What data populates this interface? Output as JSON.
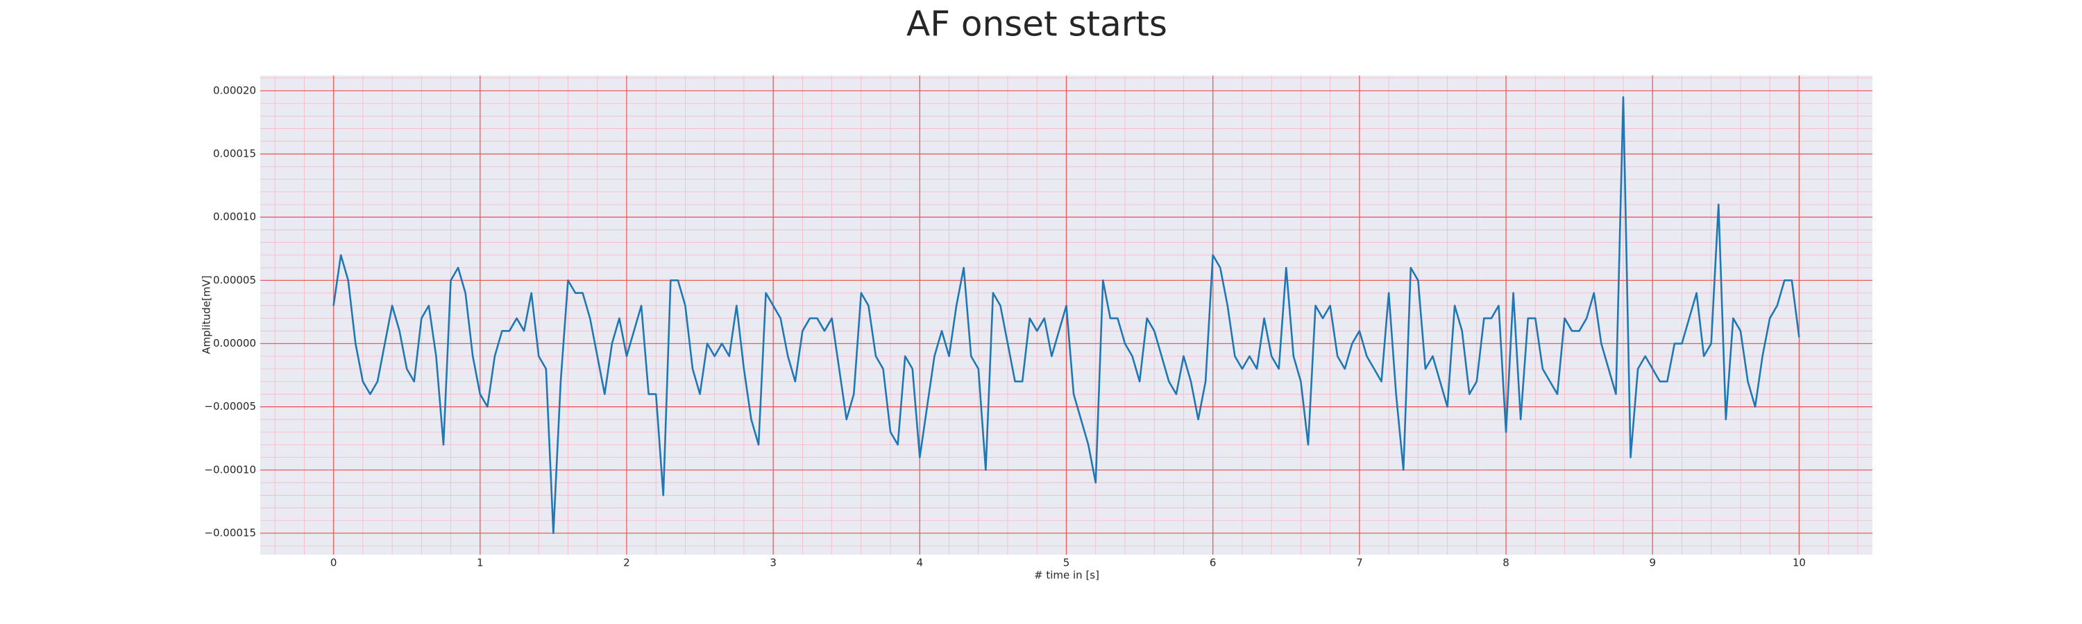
{
  "chart_data": {
    "type": "line",
    "title": "AF onset starts",
    "xlabel": "# time in [s]",
    "ylabel": "Amplitude[mV]",
    "color": "#1f77b4",
    "grid": true,
    "minor_grid": true,
    "xlim": [
      -0.5,
      10.5
    ],
    "xticks": [
      0,
      1,
      2,
      3,
      4,
      5,
      6,
      7,
      8,
      9,
      10
    ],
    "ylim": [
      -0.000167,
      0.000212
    ],
    "yticks": [
      {
        "value": -0.00015,
        "label": "−0.00015"
      },
      {
        "value": -0.0001,
        "label": "−0.00010"
      },
      {
        "value": -5e-05,
        "label": "−0.00005"
      },
      {
        "value": 0,
        "label": "0.00000"
      },
      {
        "value": 5e-05,
        "label": "0.00005"
      },
      {
        "value": 0.0001,
        "label": "0.00010"
      },
      {
        "value": 0.00015,
        "label": "0.00015"
      },
      {
        "value": 0.0002,
        "label": "0.00020"
      }
    ],
    "x": [
      0,
      0.05,
      0.1,
      0.15,
      0.2,
      0.25,
      0.3,
      0.35,
      0.4,
      0.45,
      0.5,
      0.55,
      0.6,
      0.65,
      0.7,
      0.75,
      0.8,
      0.85,
      0.9,
      0.95,
      1,
      1.05,
      1.1,
      1.15,
      1.2,
      1.25,
      1.3,
      1.35,
      1.4,
      1.45,
      1.5,
      1.55,
      1.6,
      1.65,
      1.7,
      1.75,
      1.8,
      1.85,
      1.9,
      1.95,
      2,
      2.05,
      2.1,
      2.15,
      2.2,
      2.25,
      2.3,
      2.35,
      2.4,
      2.45,
      2.5,
      2.55,
      2.6,
      2.65,
      2.7,
      2.75,
      2.8,
      2.85,
      2.9,
      2.95,
      3,
      3.05,
      3.1,
      3.15,
      3.2,
      3.25,
      3.3,
      3.35,
      3.4,
      3.45,
      3.5,
      3.55,
      3.6,
      3.65,
      3.7,
      3.75,
      3.8,
      3.85,
      3.9,
      3.95,
      4,
      4.05,
      4.1,
      4.15,
      4.2,
      4.25,
      4.3,
      4.35,
      4.4,
      4.45,
      4.5,
      4.55,
      4.6,
      4.65,
      4.7,
      4.75,
      4.8,
      4.85,
      4.9,
      4.95,
      5,
      5.05,
      5.1,
      5.15,
      5.2,
      5.25,
      5.3,
      5.35,
      5.4,
      5.45,
      5.5,
      5.55,
      5.6,
      5.65,
      5.7,
      5.75,
      5.8,
      5.85,
      5.9,
      5.95,
      6,
      6.05,
      6.1,
      6.15,
      6.2,
      6.25,
      6.3,
      6.35,
      6.4,
      6.45,
      6.5,
      6.55,
      6.6,
      6.65,
      6.7,
      6.75,
      6.8,
      6.85,
      6.9,
      6.95,
      7,
      7.05,
      7.1,
      7.15,
      7.2,
      7.25,
      7.3,
      7.35,
      7.4,
      7.45,
      7.5,
      7.55,
      7.6,
      7.65,
      7.7,
      7.75,
      7.8,
      7.85,
      7.9,
      7.95,
      8,
      8.05,
      8.1,
      8.15,
      8.2,
      8.25,
      8.3,
      8.35,
      8.4,
      8.45,
      8.5,
      8.55,
      8.6,
      8.65,
      8.7,
      8.75,
      8.8,
      8.85,
      8.9,
      8.95,
      9,
      9.05,
      9.1,
      9.15,
      9.2,
      9.25,
      9.3,
      9.35,
      9.4,
      9.45,
      9.5,
      9.55,
      9.6,
      9.65,
      9.7,
      9.75,
      9.8,
      9.85,
      9.9,
      9.95,
      10
    ],
    "values": [
      3e-05,
      7e-05,
      5e-05,
      0,
      -3e-05,
      -4e-05,
      -3e-05,
      0,
      3e-05,
      1e-05,
      -2e-05,
      -3e-05,
      2e-05,
      3e-05,
      -1e-05,
      -8e-05,
      5e-05,
      6e-05,
      4e-05,
      -1e-05,
      -4e-05,
      -5e-05,
      -1e-05,
      1e-05,
      1e-05,
      2e-05,
      1e-05,
      4e-05,
      -1e-05,
      -2e-05,
      -0.00015,
      -3e-05,
      5e-05,
      4e-05,
      4e-05,
      2e-05,
      -1e-05,
      -4e-05,
      0,
      2e-05,
      -1e-05,
      1e-05,
      3e-05,
      -4e-05,
      -4e-05,
      -0.00012,
      5e-05,
      5e-05,
      3e-05,
      -2e-05,
      -4e-05,
      0,
      -1e-05,
      0,
      -1e-05,
      3e-05,
      -2e-05,
      -6e-05,
      -8e-05,
      4e-05,
      3e-05,
      2e-05,
      -1e-05,
      -3e-05,
      1e-05,
      2e-05,
      2e-05,
      1e-05,
      2e-05,
      -2e-05,
      -6e-05,
      -4e-05,
      4e-05,
      3e-05,
      -1e-05,
      -2e-05,
      -7e-05,
      -8e-05,
      -1e-05,
      -2e-05,
      -9e-05,
      -5e-05,
      -1e-05,
      1e-05,
      -1e-05,
      3e-05,
      6e-05,
      -1e-05,
      -2e-05,
      -0.0001,
      4e-05,
      3e-05,
      0,
      -3e-05,
      -3e-05,
      2e-05,
      1e-05,
      2e-05,
      -1e-05,
      1e-05,
      3e-05,
      -4e-05,
      -6e-05,
      -8e-05,
      -0.00011,
      5e-05,
      2e-05,
      2e-05,
      0,
      -1e-05,
      -3e-05,
      2e-05,
      1e-05,
      -1e-05,
      -3e-05,
      -4e-05,
      -1e-05,
      -3e-05,
      -6e-05,
      -3e-05,
      7e-05,
      6e-05,
      3e-05,
      -1e-05,
      -2e-05,
      -1e-05,
      -2e-05,
      2e-05,
      -1e-05,
      -2e-05,
      6e-05,
      -1e-05,
      -3e-05,
      -8e-05,
      3e-05,
      2e-05,
      3e-05,
      -1e-05,
      -2e-05,
      0,
      1e-05,
      -1e-05,
      -2e-05,
      -3e-05,
      4e-05,
      -4e-05,
      -0.0001,
      6e-05,
      5e-05,
      -2e-05,
      -1e-05,
      -3e-05,
      -5e-05,
      3e-05,
      1e-05,
      -4e-05,
      -3e-05,
      2e-05,
      2e-05,
      3e-05,
      -7e-05,
      4e-05,
      -6e-05,
      2e-05,
      2e-05,
      -2e-05,
      -3e-05,
      -4e-05,
      2e-05,
      1e-05,
      1e-05,
      2e-05,
      4e-05,
      0,
      -2e-05,
      -4e-05,
      0.000195,
      -9e-05,
      -2e-05,
      -1e-05,
      -2e-05,
      -3e-05,
      -3e-05,
      0,
      0,
      2e-05,
      4e-05,
      -1e-05,
      0,
      0.00011,
      -6e-05,
      2e-05,
      1e-05,
      -3e-05,
      -5e-05,
      -1e-05,
      2e-05,
      3e-05,
      5e-05,
      5e-05,
      5e-06
    ]
  }
}
